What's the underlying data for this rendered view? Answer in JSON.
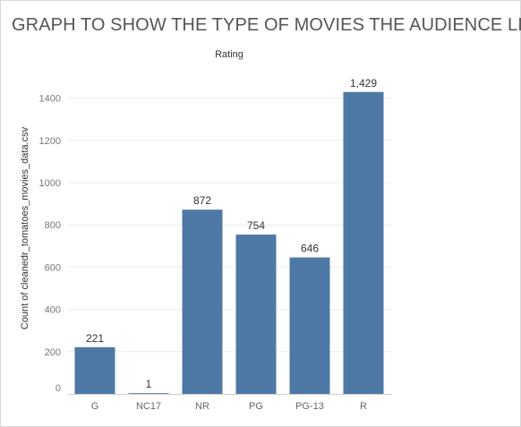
{
  "chart_data": {
    "type": "bar",
    "title": "GRAPH TO SHOW THE TYPE OF MOVIES THE AUDIENCE LIKE",
    "column_header": "Rating",
    "xlabel": "",
    "ylabel": "Count of cleanedr_tomatoes_movies_data.csv",
    "categories": [
      "G",
      "NC17",
      "NR",
      "PG",
      "PG-13",
      "R"
    ],
    "values": [
      221,
      1,
      872,
      754,
      646,
      1429
    ],
    "value_labels": [
      "221",
      "1",
      "872",
      "754",
      "646",
      "1,429"
    ],
    "ylim": [
      0,
      1500
    ],
    "yticks": [
      0,
      200,
      400,
      600,
      800,
      1000,
      1200,
      1400
    ],
    "grid": true,
    "bar_color": "#4e79a7"
  }
}
